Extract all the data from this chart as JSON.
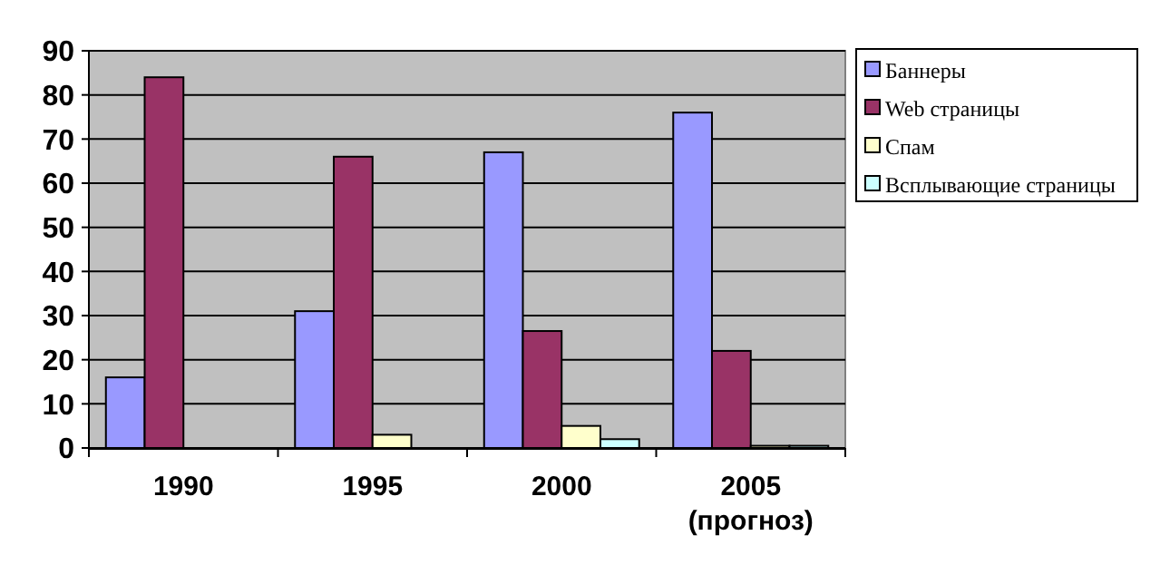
{
  "chart_data": {
    "type": "bar",
    "categories": [
      "1990",
      "1995",
      "2000",
      "2005\n(прогноз)"
    ],
    "series": [
      {
        "name": "Баннеры",
        "color": "#9999ff",
        "values": [
          16,
          31,
          67,
          76
        ]
      },
      {
        "name": "Web страницы",
        "color": "#993366",
        "values": [
          84,
          66,
          26.5,
          22
        ]
      },
      {
        "name": "Спам",
        "color": "#ffffcc",
        "values": [
          0,
          3,
          5,
          0.5
        ]
      },
      {
        "name": "Всплывающие страницы",
        "color": "#ccffff",
        "values": [
          0,
          0,
          2,
          0.5
        ]
      }
    ],
    "ylim": [
      0,
      90
    ],
    "yticks": [
      0,
      10,
      20,
      30,
      40,
      50,
      60,
      70,
      80,
      90
    ],
    "grid": "y",
    "legend": "top right"
  }
}
